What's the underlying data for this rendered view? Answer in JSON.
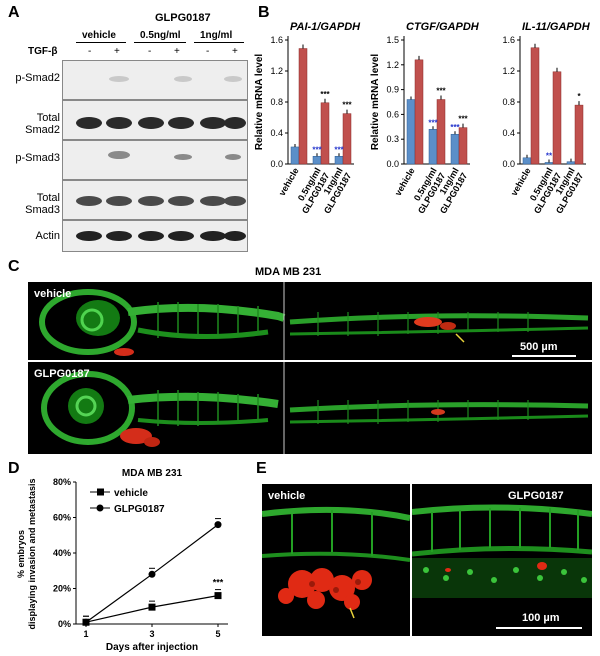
{
  "panelA": {
    "label": "A",
    "drug": "GLPG0187",
    "groups": [
      "vehicle",
      "0.5ng/ml",
      "1ng/ml"
    ],
    "tgf_label": "TGF-β",
    "signs": [
      "-",
      "+",
      "-",
      "+",
      "-",
      "+"
    ],
    "rows": [
      "p-Smad2",
      "Total Smad2",
      "p-Smad3",
      "Total Smad3",
      "Actin"
    ]
  },
  "panelB": {
    "label": "B",
    "charts": [
      {
        "title": "PAI-1/GAPDH",
        "ylabel": "Relative mRNA level",
        "yticks": [
          "0.0",
          "0.4",
          "0.8",
          "1.2",
          "1.6"
        ],
        "ymax": 1.6,
        "categories": [
          "vehicle",
          "0.5ng/ml GLPG0187",
          "1ng/ml GLPG0187"
        ],
        "blue": [
          0.22,
          0.1,
          0.1
        ],
        "red": [
          1.49,
          0.79,
          0.65
        ],
        "blue_sig": [
          "",
          "***",
          "***"
        ],
        "red_sig": [
          "",
          "***",
          "***"
        ]
      },
      {
        "title": "CTGF/GAPDH",
        "ylabel": "Relative mRNA level",
        "yticks": [
          "0.0",
          "0.3",
          "0.6",
          "0.9",
          "1.2",
          "1.5"
        ],
        "ymax": 1.5,
        "categories": [
          "vehicle",
          "0.5ng/ml GLPG0187",
          "1ng/ml GLPG0187"
        ],
        "blue": [
          0.78,
          0.42,
          0.36
        ],
        "red": [
          1.26,
          0.78,
          0.44
        ],
        "blue_sig": [
          "",
          "***",
          "***"
        ],
        "red_sig": [
          "",
          "***",
          "***"
        ]
      },
      {
        "title": "IL-11/GAPDH",
        "ylabel": "",
        "yticks": [
          "0.0",
          "0.4",
          "0.8",
          "1.2",
          "1.6"
        ],
        "ymax": 1.6,
        "categories": [
          "vehicle",
          "0.5ng/ml GLPG0187",
          "1ng/ml GLPG0187"
        ],
        "blue": [
          0.08,
          0.02,
          0.03
        ],
        "red": [
          1.5,
          1.19,
          0.76
        ],
        "blue_sig": [
          "",
          "**",
          ""
        ],
        "red_sig": [
          "",
          "",
          "*"
        ]
      }
    ]
  },
  "panelC": {
    "label": "C",
    "title": "MDA MB 231",
    "top_label": "vehicle",
    "bottom_label": "GLPG0187",
    "scale": "500 µm"
  },
  "panelD": {
    "label": "D",
    "chart_data": {
      "type": "line",
      "title": "MDA MB 231",
      "xlabel": "Days after injection",
      "ylabel": "% embryos displaying invasion and metastasis",
      "x": [
        1,
        3,
        5
      ],
      "yticks": [
        "0%",
        "20%",
        "40%",
        "60%",
        "80%"
      ],
      "ylim": [
        0,
        80
      ],
      "series": [
        {
          "name": "vehicle",
          "values": [
            1,
            9.5,
            16
          ],
          "marker": "square"
        },
        {
          "name": "GLPG0187",
          "values": [
            1,
            28,
            56
          ],
          "marker": "circle"
        }
      ],
      "annotation": "***"
    }
  },
  "panelE": {
    "label": "E",
    "left_label": "vehicle",
    "right_label": "GLPG0187",
    "scale": "100 µm"
  }
}
